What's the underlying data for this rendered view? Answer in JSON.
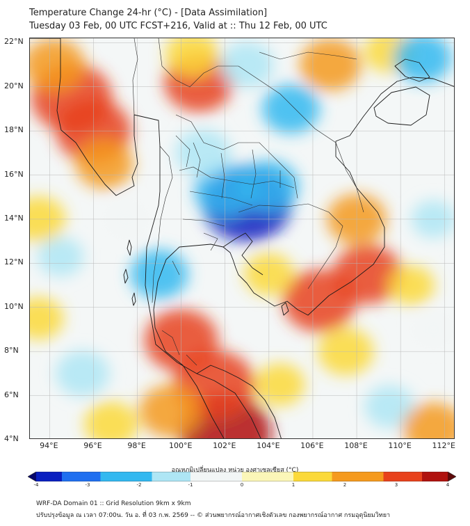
{
  "title_line1": "Temperature Change 24-hr (°C) - [Data Assimilation]",
  "title_line2": "Tuesday 03 Feb, 00 UTC FCST+216, Valid at :: Thu 12 Feb, 00 UTC",
  "lat_labels": [
    "22°N",
    "20°N",
    "18°N",
    "16°N",
    "14°N",
    "12°N",
    "10°N",
    "8°N",
    "6°N",
    "4°N"
  ],
  "lon_labels": [
    "94°E",
    "96°E",
    "98°E",
    "100°E",
    "102°E",
    "104°E",
    "106°E",
    "108°E",
    "110°E",
    "112°E"
  ],
  "colorbar": {
    "label": "อุณหภูมิเปลี่ยนแปลง หน่วย องศาเซลเซียส (°C)",
    "ticks": [
      "-4",
      "-3",
      "-2",
      "-1",
      "0",
      "1",
      "2",
      "3",
      "4"
    ],
    "min": -4,
    "max": 4,
    "colors": [
      "#07076b",
      "#0a1fc0",
      "#1f6ff0",
      "#33b8f0",
      "#aee6f5",
      "#f2f6f6",
      "#fbf6b8",
      "#fbd93a",
      "#f59a1e",
      "#e8421c",
      "#b0120e",
      "#5e0a0a"
    ]
  },
  "footer_line1": "WRF-DA Domain 01 :: Grid Resolution 9km x 9km",
  "footer_line2": "ปรับปรุงข้อมูล ณ เวลา 07:00น. วัน อ. ที่ 03 ก.พ. 2569 -- © ส่วนพยากรณ์อากาศเชิงตัวเลข กองพยากรณ์อากาศ กรมอุตุนิยมวิทยา",
  "field_anomalies": [
    {
      "lon": 95.0,
      "lat": 19.5,
      "value": 2.6
    },
    {
      "lon": 96.0,
      "lat": 18.0,
      "value": 2.3
    },
    {
      "lon": 94.2,
      "lat": 21.0,
      "value": 1.6
    },
    {
      "lon": 96.5,
      "lat": 16.5,
      "value": 1.4
    },
    {
      "lon": 100.8,
      "lat": 20.2,
      "value": 2.0
    },
    {
      "lon": 100.5,
      "lat": 21.5,
      "value": 1.2
    },
    {
      "lon": 106.8,
      "lat": 21.0,
      "value": 1.6
    },
    {
      "lon": 109.5,
      "lat": 21.6,
      "value": 1.0
    },
    {
      "lon": 103.0,
      "lat": 14.7,
      "value": -3.0
    },
    {
      "lon": 102.0,
      "lat": 15.3,
      "value": -1.6
    },
    {
      "lon": 104.0,
      "lat": 15.5,
      "value": -1.5
    },
    {
      "lon": 105.0,
      "lat": 19.0,
      "value": -1.4
    },
    {
      "lon": 103.0,
      "lat": 21.0,
      "value": -1.2
    },
    {
      "lon": 101.0,
      "lat": 17.0,
      "value": -1.3
    },
    {
      "lon": 99.0,
      "lat": 11.5,
      "value": -1.4
    },
    {
      "lon": 111.0,
      "lat": 21.3,
      "value": -1.4
    },
    {
      "lon": 97.5,
      "lat": 14.0,
      "value": -0.6
    },
    {
      "lon": 95.5,
      "lat": 7.0,
      "value": -1.2
    },
    {
      "lon": 94.5,
      "lat": 12.3,
      "value": -0.8
    },
    {
      "lon": 111.5,
      "lat": 14.0,
      "value": -0.7
    },
    {
      "lon": 109.5,
      "lat": 5.5,
      "value": -1.0
    },
    {
      "lon": 111.5,
      "lat": 9.0,
      "value": -0.5
    },
    {
      "lon": 102.0,
      "lat": 4.3,
      "value": 3.2
    },
    {
      "lon": 101.5,
      "lat": 6.5,
      "value": 2.6
    },
    {
      "lon": 100.0,
      "lat": 8.5,
      "value": 2.2
    },
    {
      "lon": 99.5,
      "lat": 5.3,
      "value": 1.6
    },
    {
      "lon": 106.3,
      "lat": 10.3,
      "value": 2.2
    },
    {
      "lon": 108.5,
      "lat": 11.5,
      "value": 2.0
    },
    {
      "lon": 108.0,
      "lat": 14.0,
      "value": 1.5
    },
    {
      "lon": 104.0,
      "lat": 11.5,
      "value": 1.0
    },
    {
      "lon": 107.5,
      "lat": 8.0,
      "value": 1.3
    },
    {
      "lon": 110.5,
      "lat": 11.0,
      "value": 0.8
    },
    {
      "lon": 93.5,
      "lat": 14.0,
      "value": 1.2
    },
    {
      "lon": 93.5,
      "lat": 9.5,
      "value": 1.0
    },
    {
      "lon": 96.8,
      "lat": 4.7,
      "value": 1.2
    },
    {
      "lon": 104.5,
      "lat": 6.5,
      "value": 1.0
    },
    {
      "lon": 111.5,
      "lat": 4.5,
      "value": 1.6
    }
  ]
}
